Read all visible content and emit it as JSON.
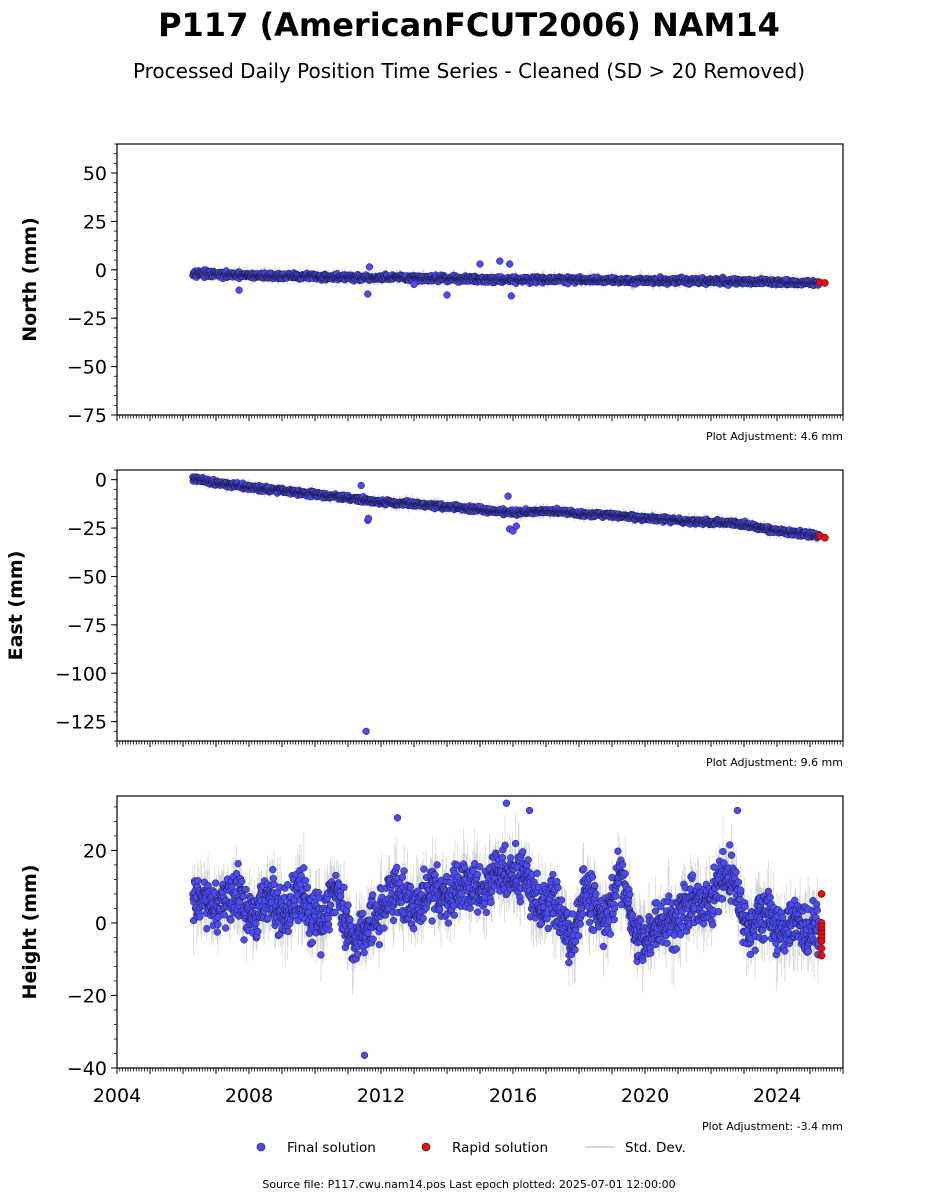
{
  "figure": {
    "title": "P117 (AmericanFCUT2006) NAM14",
    "subtitle": "Processed Daily Position Time Series - Cleaned (SD > 20 Removed)",
    "source_note": "Source file: P117.cwu.nam14.pos  Last epoch plotted: 2025-07-01 12:00:00"
  },
  "legend": {
    "final": "Final solution",
    "rapid": "Rapid solution",
    "std": "Std. Dev."
  },
  "colors": {
    "final": "#4b4bf2",
    "rapid": "#e01010",
    "std": "#b4b4b4",
    "edge": "#1a1a40"
  },
  "chart_data": [
    {
      "type": "scatter",
      "ylabel": "North (mm)",
      "adjustment": "Plot Adjustment: 4.6 mm",
      "xlim": [
        2004.0,
        2026.0
      ],
      "ylim": [
        -75,
        65
      ],
      "yticks": [
        50,
        25,
        0,
        -25,
        -50,
        -75
      ],
      "ytick_labels": [
        "50",
        "25",
        "0",
        "−25",
        "−50",
        "−75"
      ],
      "series": [
        {
          "name": "Final solution",
          "x": [
            2006.3,
            2007.0,
            2008.0,
            2009.0,
            2010.0,
            2011.0,
            2011.6,
            2012.0,
            2013.0,
            2014.0,
            2015.0,
            2016.0,
            2017.0,
            2018.0,
            2019.0,
            2020.0,
            2021.0,
            2022.0,
            2023.0,
            2024.0,
            2025.3
          ],
          "y": [
            -1.5,
            -2.5,
            -3.0,
            -3.2,
            -3.5,
            -3.8,
            -4.5,
            -4.0,
            -4.2,
            -4.5,
            -4.8,
            -5.0,
            -5.0,
            -5.2,
            -5.4,
            -5.5,
            -5.6,
            -5.8,
            -6.0,
            -6.3,
            -6.8
          ]
        },
        {
          "name": "Rapid solution",
          "x": [
            2025.3,
            2025.45
          ],
          "y": [
            -6.5,
            -6.8
          ]
        }
      ],
      "outliers": {
        "x": [
          2007.7,
          2011.6,
          2011.65,
          2013.0,
          2014.0,
          2015.0,
          2015.6,
          2015.9,
          2015.95
        ],
        "y": [
          -10.5,
          -12.5,
          1.5,
          -7.5,
          -13.0,
          3.0,
          4.5,
          3.0,
          -13.5
        ]
      }
    },
    {
      "type": "scatter",
      "ylabel": "East (mm)",
      "adjustment": "Plot Adjustment: 9.6 mm",
      "xlim": [
        2004.0,
        2026.0
      ],
      "ylim": [
        -135,
        5
      ],
      "yticks": [
        0,
        -25,
        -50,
        -75,
        -100,
        -125
      ],
      "ytick_labels": [
        "0",
        "−25",
        "−50",
        "−75",
        "−100",
        "−125"
      ],
      "series": [
        {
          "name": "Final solution",
          "x": [
            2006.3,
            2007.0,
            2008.0,
            2009.0,
            2010.0,
            2011.0,
            2012.0,
            2013.0,
            2014.0,
            2015.0,
            2016.0,
            2017.0,
            2018.0,
            2019.0,
            2020.0,
            2021.0,
            2022.0,
            2023.0,
            2024.0,
            2025.3
          ],
          "y": [
            0.5,
            -1.5,
            -4.0,
            -5.5,
            -7.5,
            -9.5,
            -11.5,
            -12.5,
            -14.0,
            -15.5,
            -17.0,
            -16.0,
            -17.5,
            -18.5,
            -20.0,
            -21.0,
            -22.0,
            -23.0,
            -26.5,
            -29.0
          ]
        },
        {
          "name": "Rapid solution",
          "x": [
            2025.3,
            2025.45
          ],
          "y": [
            -29.0,
            -30.0
          ]
        }
      ],
      "outliers": {
        "x": [
          2011.4,
          2011.6,
          2011.62,
          2011.55,
          2015.9,
          2016.0,
          2016.1,
          2015.85
        ],
        "y": [
          -3.0,
          -21.0,
          -20.0,
          -130.0,
          -25.5,
          -26.5,
          -24.0,
          -8.5
        ]
      }
    },
    {
      "type": "scatter",
      "ylabel": "Height (mm)",
      "adjustment": "Plot Adjustment: -3.4 mm",
      "xlim": [
        2004.0,
        2026.0
      ],
      "ylim": [
        -40,
        35
      ],
      "yticks": [
        20,
        0,
        -20,
        -40
      ],
      "ytick_labels": [
        "20",
        "0",
        "−20",
        "−40"
      ],
      "xticks": [
        2004,
        2008,
        2012,
        2016,
        2020,
        2024
      ],
      "xtick_labels": [
        "2004",
        "2008",
        "2012",
        "2016",
        "2020",
        "2024"
      ],
      "series": [
        {
          "name": "Final solution",
          "x": [
            2006.3,
            2006.7,
            2007.2,
            2007.7,
            2008.2,
            2008.7,
            2009.2,
            2009.7,
            2010.2,
            2010.7,
            2011.2,
            2011.7,
            2012.2,
            2012.7,
            2013.2,
            2013.7,
            2014.2,
            2014.7,
            2015.2,
            2015.7,
            2016.2,
            2016.7,
            2017.2,
            2017.7,
            2018.2,
            2018.7,
            2019.2,
            2019.7,
            2020.2,
            2020.7,
            2021.2,
            2021.7,
            2022.2,
            2022.7,
            2023.2,
            2023.7,
            2024.2,
            2024.7,
            2025.2
          ],
          "y": [
            3,
            8,
            2,
            10,
            -2,
            9,
            0,
            10,
            -3,
            12,
            -8,
            2,
            5,
            10,
            2,
            12,
            6,
            14,
            8,
            16,
            12,
            8,
            4,
            -2,
            6,
            2,
            10,
            0,
            -6,
            4,
            2,
            6,
            8,
            14,
            -6,
            6,
            -4,
            2,
            -4
          ]
        },
        {
          "name": "Rapid solution",
          "x": [
            2025.35,
            2025.35,
            2025.35,
            2025.35,
            2025.35,
            2025.35,
            2025.35,
            2025.35,
            2025.35
          ],
          "y": [
            8,
            0,
            -1,
            -2,
            -3,
            -4,
            -5,
            -7,
            -9
          ]
        }
      ],
      "outliers": {
        "x": [
          2011.5,
          2012.5,
          2015.8,
          2016.5,
          2022.8
        ],
        "y": [
          -36.5,
          29,
          33,
          31,
          31
        ]
      }
    }
  ]
}
